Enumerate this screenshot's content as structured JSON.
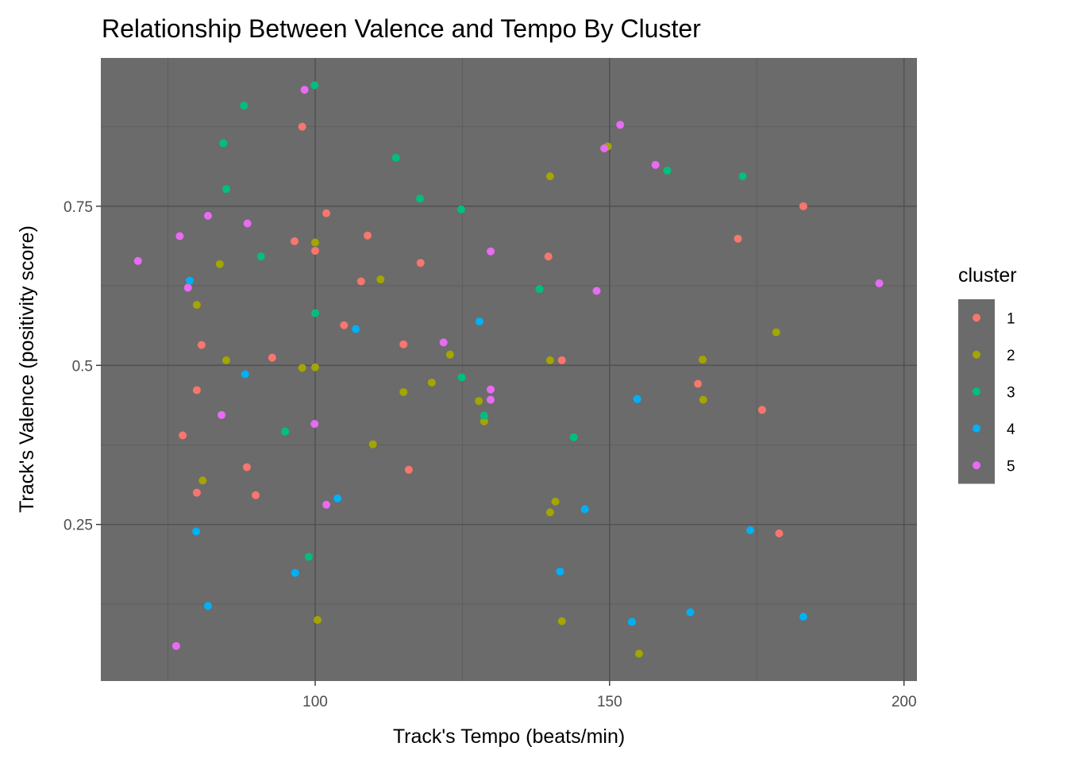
{
  "chart_data": {
    "type": "scatter",
    "title": "Relationship Between Valence and Tempo By Cluster",
    "x_label": "Track's Tempo (beats/min)",
    "y_label": "Track's Valence (positivity score)",
    "xlim": [
      63.6,
      202.2
    ],
    "ylim": [
      0.004,
      0.983
    ],
    "xticks": [
      100,
      150,
      200
    ],
    "yticks": [
      0.25,
      0.5,
      0.75
    ],
    "grid": true,
    "legend_title": "cluster",
    "legend_position": "right",
    "series": [
      {
        "name": "1",
        "color": "#F8766D",
        "x": [
          97.8,
          101.9,
          96.5,
          100,
          108.9,
          107.8,
          117.9,
          104.9,
          92.7,
          80.7,
          79.9,
          77.5,
          88.4,
          89.9,
          79.9,
          115.0,
          115.9,
          139.6,
          141.9,
          165.0,
          171.8,
          175.9,
          178.8,
          182.9
        ],
        "values": [
          0.875,
          0.739,
          0.695,
          0.68,
          0.704,
          0.632,
          0.661,
          0.563,
          0.512,
          0.532,
          0.461,
          0.39,
          0.34,
          0.296,
          0.3,
          0.533,
          0.336,
          0.671,
          0.508,
          0.471,
          0.699,
          0.43,
          0.236,
          0.75
        ]
      },
      {
        "name": "2",
        "color": "#A3A500",
        "x": [
          100,
          83.8,
          111.1,
          79.9,
          84.9,
          97.8,
          100,
          122.9,
          119.8,
          115.0,
          127.8,
          128.7,
          109.8,
          80.9,
          139.9,
          149.7,
          139.9,
          140.8,
          139.9,
          100.4,
          141.9,
          155.0,
          165.8,
          165.9,
          178.3
        ],
        "values": [
          0.693,
          0.659,
          0.635,
          0.595,
          0.508,
          0.496,
          0.497,
          0.517,
          0.473,
          0.458,
          0.444,
          0.412,
          0.376,
          0.319,
          0.797,
          0.844,
          0.508,
          0.286,
          0.269,
          0.1,
          0.098,
          0.047,
          0.509,
          0.446,
          0.552
        ]
      },
      {
        "name": "3",
        "color": "#00BF7D",
        "x": [
          87.9,
          99.9,
          84.4,
          84.9,
          113.7,
          117.8,
          124.8,
          90.8,
          100,
          138.1,
          124.9,
          128.7,
          94.9,
          143.9,
          98.9,
          159.8,
          172.6
        ],
        "values": [
          0.908,
          0.94,
          0.849,
          0.777,
          0.826,
          0.762,
          0.745,
          0.671,
          0.582,
          0.62,
          0.481,
          0.421,
          0.396,
          0.387,
          0.199,
          0.806,
          0.797
        ]
      },
      {
        "name": "4",
        "color": "#00B0F6",
        "x": [
          78.7,
          106.9,
          127.9,
          88.1,
          103.8,
          145.8,
          79.8,
          96.6,
          141.6,
          81.8,
          153.8,
          163.7,
          182.9,
          173.9,
          154.7
        ],
        "values": [
          0.633,
          0.557,
          0.569,
          0.486,
          0.291,
          0.274,
          0.239,
          0.174,
          0.176,
          0.122,
          0.097,
          0.112,
          0.105,
          0.241,
          0.447
        ]
      },
      {
        "name": "5",
        "color": "#E76BF3",
        "x": [
          98.2,
          151.8,
          149.1,
          157.8,
          81.8,
          77.0,
          88.5,
          69.9,
          78.4,
          129.8,
          147.8,
          121.8,
          129.8,
          129.8,
          84.1,
          99.9,
          101.9,
          76.4,
          195.8
        ],
        "values": [
          0.933,
          0.878,
          0.841,
          0.815,
          0.735,
          0.703,
          0.723,
          0.664,
          0.622,
          0.679,
          0.617,
          0.536,
          0.462,
          0.446,
          0.422,
          0.408,
          0.281,
          0.059,
          0.629
        ]
      }
    ]
  }
}
